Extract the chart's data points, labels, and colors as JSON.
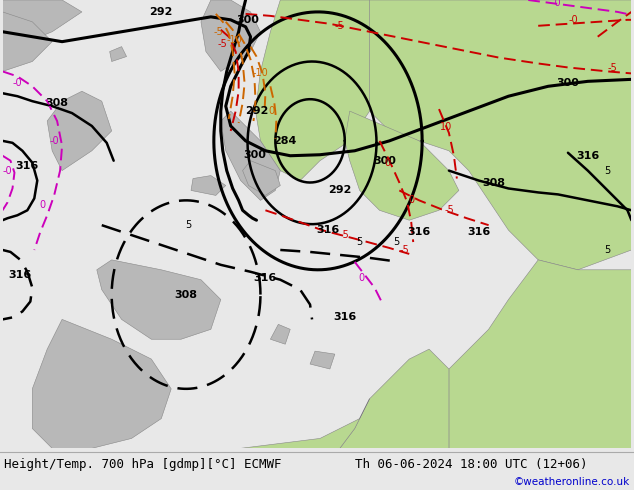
{
  "title_left": "Height/Temp. 700 hPa [gdmp][°C] ECMWF",
  "title_right": "Th 06-06-2024 18:00 UTC (12+06)",
  "watermark": "©weatheronline.co.uk",
  "bg_ocean": "#c8c8c8",
  "bg_land_gray": "#b8b8b8",
  "bg_land_green": "#b8d890",
  "bottom_bar_color": "#e8e8e8",
  "title_fontsize": 9,
  "watermark_color": "#0000cc",
  "black_contour_color": "#000000",
  "red_contour_color": "#cc0000",
  "magenta_contour_color": "#cc00bb",
  "orange_contour_color": "#cc6600"
}
